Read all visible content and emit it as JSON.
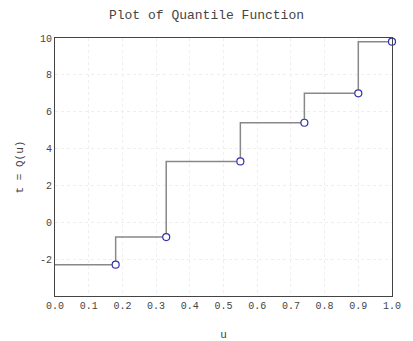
{
  "chart_data": {
    "type": "step",
    "title": "Plot of Quantile Function",
    "xlabel": "u",
    "ylabel": "t = Q(u)",
    "xlim": [
      0,
      1
    ],
    "ylim": [
      -4,
      10
    ],
    "xticks": [
      {
        "value": 0,
        "label": "0.0"
      },
      0.1,
      0.2,
      0.3,
      0.4,
      0.5,
      0.6,
      0.7,
      0.8,
      0.9,
      {
        "value": 1.0,
        "label": "1.0"
      }
    ],
    "yticks": [
      -2,
      0,
      2,
      4,
      6,
      8,
      10
    ],
    "grid": true,
    "series": [
      {
        "type": "step",
        "color": "#888888",
        "x": [
          0.0,
          0.18,
          0.33,
          0.55,
          0.74,
          0.9,
          1.0
        ],
        "values": [
          -2.3,
          -0.8,
          3.3,
          5.4,
          7.0,
          9.8,
          9.8
        ]
      },
      {
        "type": "scatter",
        "marker": "open circle",
        "color": "#3333aa",
        "x": [
          0.18,
          0.33,
          0.55,
          0.74,
          0.9,
          1.0
        ],
        "values": [
          -2.3,
          -0.8,
          3.3,
          5.4,
          7.0,
          9.8
        ]
      }
    ]
  }
}
